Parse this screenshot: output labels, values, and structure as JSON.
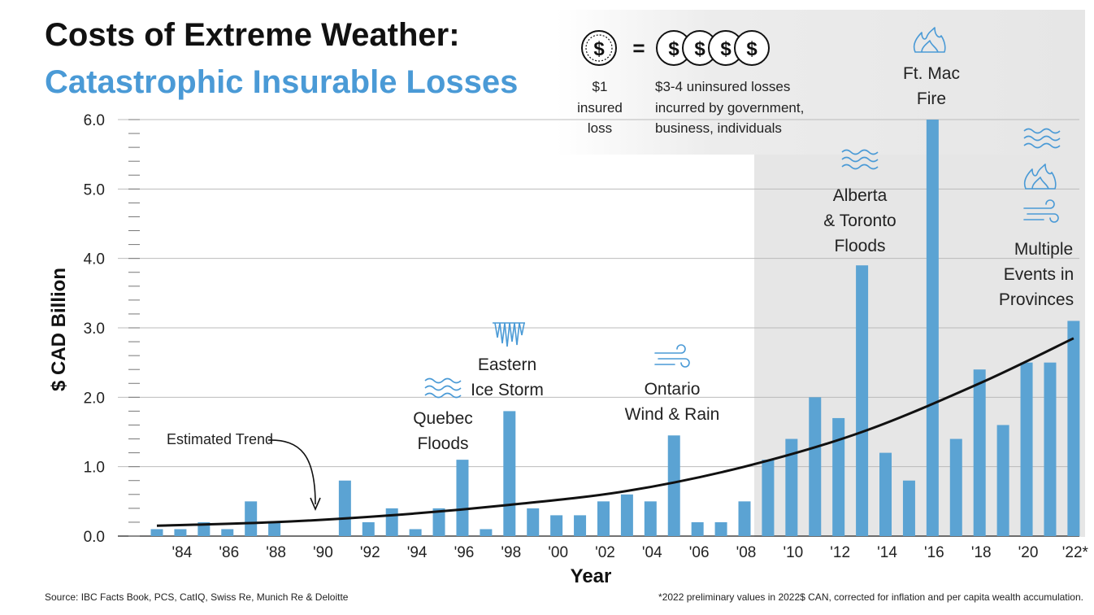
{
  "title": "Costs of Extreme Weather:",
  "subtitle": "Catastrophic Insurable Losses",
  "colors": {
    "bar": "#5ba3d3",
    "accent": "#4a9ad6",
    "trend": "#111111",
    "shade": "#e6e6e6",
    "icon": "#4a9ad6"
  },
  "legend": {
    "coin_symbol": "$",
    "left_text": [
      "$1",
      "insured",
      "loss"
    ],
    "equals": "=",
    "right_text": [
      "$3-4 uninsured losses",
      "incurred by government,",
      "business, individuals"
    ]
  },
  "annotations": [
    {
      "lines": [
        "Quebec",
        "Floods"
      ],
      "icon": "water-waves-icon"
    },
    {
      "lines": [
        "Eastern",
        "Ice Storm"
      ],
      "icon": "icicles-icon"
    },
    {
      "lines": [
        "Ontario",
        "Wind & Rain"
      ],
      "icon": "wind-icon"
    },
    {
      "lines": [
        "Alberta",
        "& Toronto",
        "Floods"
      ],
      "icon": "water-waves-icon"
    },
    {
      "lines": [
        "Ft. Mac",
        "Fire"
      ],
      "icon": "fire-icon"
    },
    {
      "lines": [
        "Multiple",
        "Events in",
        "Provinces"
      ],
      "icons": [
        "water-waves-icon",
        "fire-icon",
        "wind-icon"
      ]
    }
  ],
  "trend_label": "Estimated Trend",
  "source": "Source: IBC Facts Book, PCS, CatIQ, Swiss Re, Munich Re & Deloitte",
  "footnote": "*2022 preliminary values in 2022$ CAN, corrected for inflation and per capita wealth accumulation.",
  "chart_data": {
    "type": "bar",
    "x": [
      1983,
      1984,
      1985,
      1986,
      1987,
      1988,
      1989,
      1990,
      1991,
      1992,
      1993,
      1994,
      1995,
      1996,
      1997,
      1998,
      1999,
      2000,
      2001,
      2002,
      2003,
      2004,
      2005,
      2006,
      2007,
      2008,
      2009,
      2010,
      2011,
      2012,
      2013,
      2014,
      2015,
      2016,
      2017,
      2018,
      2019,
      2020,
      2021,
      2022
    ],
    "values": [
      0.1,
      0.1,
      0.2,
      0.1,
      0.5,
      0.2,
      0.0,
      0.0,
      0.8,
      0.2,
      0.4,
      0.1,
      0.4,
      1.1,
      0.1,
      1.8,
      0.4,
      0.3,
      0.3,
      0.5,
      0.6,
      0.5,
      1.45,
      0.2,
      0.2,
      0.5,
      1.1,
      1.4,
      2.0,
      1.7,
      3.9,
      1.2,
      0.8,
      6.0,
      1.4,
      2.4,
      1.6,
      2.5,
      2.5,
      3.1
    ],
    "xticks": [
      1984,
      1986,
      1988,
      1990,
      1992,
      1994,
      1996,
      1998,
      2000,
      2002,
      2004,
      2006,
      2008,
      2010,
      2012,
      2014,
      2016,
      2018,
      2020,
      2022
    ],
    "xtick_labels": [
      "'84",
      "'86",
      "'88",
      "'90",
      "'92",
      "'94",
      "'96",
      "'98",
      "'00",
      "'02",
      "'04",
      "'06",
      "'08",
      "'10",
      "'12",
      "'14",
      "'16",
      "'18",
      "'20",
      "'22*"
    ],
    "yticks": [
      0,
      1,
      2,
      3,
      4,
      5,
      6
    ],
    "ytick_labels": [
      "0.0",
      "1.0",
      "2.0",
      "3.0",
      "4.0",
      "5.0",
      "6.0"
    ],
    "ylim": [
      0,
      6
    ],
    "xlabel": "Year",
    "ylabel": "$ CAD Billion",
    "grid": true,
    "trend": {
      "label": "Estimated Trend",
      "x": [
        1983,
        1988,
        1993,
        1998,
        2003,
        2008,
        2013,
        2018,
        2022
      ],
      "y": [
        0.15,
        0.2,
        0.3,
        0.45,
        0.65,
        1.0,
        1.5,
        2.2,
        2.85
      ]
    },
    "shaded_from_year": 2009
  }
}
